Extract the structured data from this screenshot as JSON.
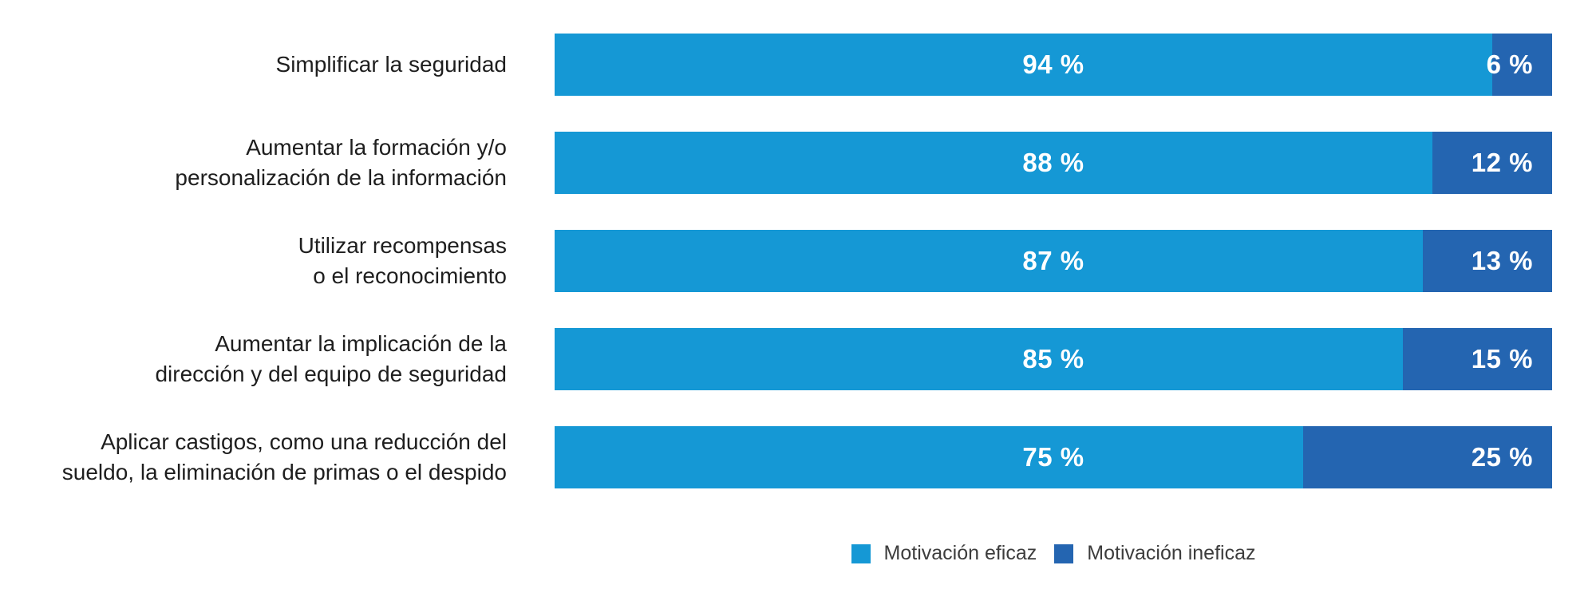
{
  "chart_data": {
    "type": "bar",
    "orientation": "horizontal",
    "stacked": true,
    "xlim": [
      0,
      100
    ],
    "grid": false,
    "legend_position": "bottom",
    "series": [
      {
        "name": "Motivación eficaz",
        "color": "#1598d5",
        "values": [
          94,
          88,
          87,
          85,
          75
        ]
      },
      {
        "name": "Motivación ineficaz",
        "color": "#2465b1",
        "values": [
          6,
          12,
          13,
          15,
          25
        ]
      }
    ],
    "categories": [
      "Simplificar la seguridad",
      "Aumentar la formación y/o personalización de la información",
      "Utilizar recompensas o el reconocimiento",
      "Aumentar la implicación de la dirección y del equipo de seguridad",
      "Aplicar castigos, como una reducción del sueldo, la eliminación de primas o el despido"
    ],
    "rows": [
      {
        "label_lines": [
          "Simplificar la seguridad"
        ],
        "eficaz": 94,
        "ineficaz": 6,
        "eficaz_label": "94 %",
        "ineficaz_label": "6 %"
      },
      {
        "label_lines": [
          "Aumentar la formación y/o",
          "personalización de la información"
        ],
        "eficaz": 88,
        "ineficaz": 12,
        "eficaz_label": "88 %",
        "ineficaz_label": "12 %"
      },
      {
        "label_lines": [
          "Utilizar recompensas",
          "o el reconocimiento"
        ],
        "eficaz": 87,
        "ineficaz": 13,
        "eficaz_label": "87 %",
        "ineficaz_label": "13 %"
      },
      {
        "label_lines": [
          "Aumentar la implicación de la",
          "dirección y del equipo de seguridad"
        ],
        "eficaz": 85,
        "ineficaz": 15,
        "eficaz_label": "85 %",
        "ineficaz_label": "15 %"
      },
      {
        "label_lines": [
          "Aplicar castigos, como una reducción del",
          "sueldo, la eliminación de primas o el despido"
        ],
        "eficaz": 75,
        "ineficaz": 25,
        "eficaz_label": "75 %",
        "ineficaz_label": "25 %"
      }
    ],
    "legend": [
      {
        "label": "Motivación eficaz",
        "color": "#1598d5"
      },
      {
        "label": "Motivación ineficaz",
        "color": "#2465b1"
      }
    ]
  },
  "colors": {
    "effective_blue": "#1598d5",
    "ineffective_blue": "#2465b1",
    "category_text": "#1e1e1e",
    "legend_text": "#3d3d3d",
    "value_text": "#ffffff",
    "background": "#ffffff"
  }
}
